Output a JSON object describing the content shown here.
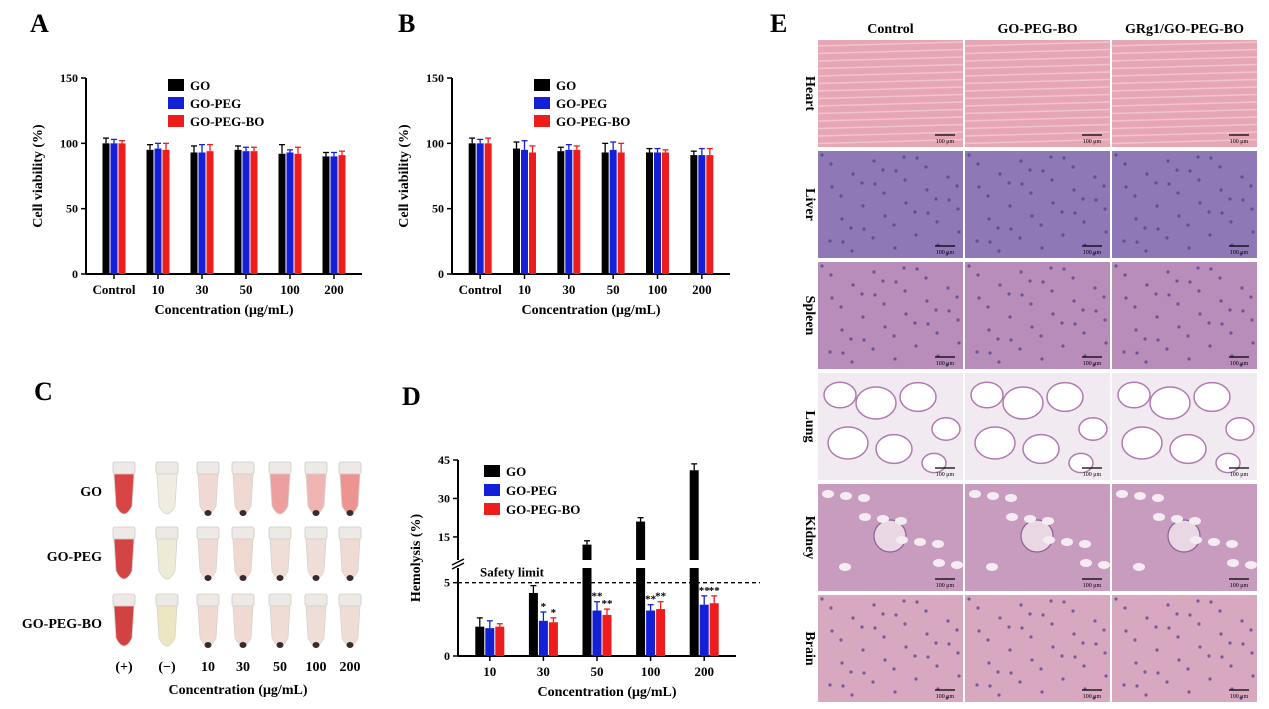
{
  "panel_labels": {
    "a": "A",
    "b": "B",
    "c": "C",
    "d": "D",
    "e": "E"
  },
  "colors": {
    "GO": "#000000",
    "GO-PEG": "#1420d8",
    "GO-PEG-BO": "#ee1c1c"
  },
  "chart_data": [
    {
      "panel": "A",
      "type": "bar",
      "categories": [
        "Control",
        "10",
        "30",
        "50",
        "100",
        "200"
      ],
      "series": [
        {
          "name": "GO",
          "values": [
            100,
            95,
            93,
            95,
            92,
            90
          ],
          "errors": [
            4,
            4,
            5,
            3,
            7,
            3
          ]
        },
        {
          "name": "GO-PEG",
          "values": [
            100,
            96,
            93,
            94,
            93,
            90
          ],
          "errors": [
            3,
            4,
            6,
            3,
            2,
            3
          ]
        },
        {
          "name": "GO-PEG-BO",
          "values": [
            100,
            95,
            94,
            94,
            92,
            91
          ],
          "errors": [
            2,
            5,
            5,
            3,
            5,
            3
          ]
        }
      ],
      "xlabel": "Concentration (μg/mL)",
      "ylabel": "Cell viability (%)",
      "ylim": [
        0,
        150
      ],
      "yticks": [
        "0",
        "50",
        "100",
        "150"
      ],
      "legend": "top-left"
    },
    {
      "panel": "B",
      "type": "bar",
      "categories": [
        "Control",
        "10",
        "30",
        "50",
        "100",
        "200"
      ],
      "series": [
        {
          "name": "GO",
          "values": [
            100,
            96,
            94,
            93,
            93,
            91
          ],
          "errors": [
            4,
            5,
            3,
            7,
            3,
            3
          ]
        },
        {
          "name": "GO-PEG",
          "values": [
            100,
            95,
            95,
            95,
            93,
            91
          ],
          "errors": [
            3,
            7,
            4,
            6,
            3,
            5
          ]
        },
        {
          "name": "GO-PEG-BO",
          "values": [
            100,
            93,
            95,
            93,
            93,
            91
          ],
          "errors": [
            4,
            5,
            3,
            7,
            2,
            5
          ]
        }
      ],
      "xlabel": "Concentration (μg/mL)",
      "ylabel": "Cell viability (%)",
      "ylim": [
        0,
        150
      ],
      "yticks": [
        "0",
        "50",
        "100",
        "150"
      ],
      "legend": "top-left"
    },
    {
      "panel": "D",
      "type": "bar",
      "categories": [
        "10",
        "30",
        "50",
        "100",
        "200"
      ],
      "series": [
        {
          "name": "GO",
          "values": [
            2.0,
            4.3,
            12.0,
            21.0,
            41.0
          ],
          "errors": [
            0.6,
            0.5,
            1.5,
            1.5,
            2.5
          ]
        },
        {
          "name": "GO-PEG",
          "values": [
            1.9,
            2.4,
            3.1,
            3.1,
            3.5
          ],
          "errors": [
            0.5,
            0.6,
            0.6,
            0.4,
            0.6
          ]
        },
        {
          "name": "GO-PEG-BO",
          "values": [
            2.0,
            2.3,
            2.8,
            3.2,
            3.6
          ],
          "errors": [
            0.2,
            0.3,
            0.4,
            0.5,
            0.5
          ]
        }
      ],
      "significance": {
        "GO-PEG": [
          "",
          "*",
          "**",
          "**",
          "**"
        ],
        "GO-PEG-BO": [
          "",
          "*",
          "**",
          "**",
          "**"
        ]
      },
      "xlabel": "Concentration (μg/mL)",
      "ylabel": "Hemolysis (%)",
      "y_broken_axis": {
        "lower": [
          0,
          6
        ],
        "upper": [
          6,
          45
        ]
      },
      "yticks": [
        "0",
        "5",
        "15",
        "30",
        "45"
      ],
      "reference_line": {
        "value": 5,
        "label": "Safety limit"
      },
      "legend": "top-left"
    }
  ],
  "panel_c": {
    "row_labels": [
      "GO",
      "GO-PEG",
      "GO-PEG-BO"
    ],
    "column_labels": [
      "(+)",
      "(−)",
      "10",
      "30",
      "50",
      "100",
      "200"
    ],
    "xlabel": "Concentration (μg/mL)",
    "tube_colors": [
      [
        "#d83a3a",
        "#f1ebe0",
        "#f0d8d2",
        "#efd6cf",
        "#ec9a98",
        "#f0b1ae",
        "#ea8f8b"
      ],
      [
        "#d13a3a",
        "#ede9d4",
        "#efd9d3",
        "#efd6ce",
        "#efddd6",
        "#efdcd5",
        "#efd9d2"
      ],
      [
        "#d03838",
        "#ebe6bf",
        "#f0d7cf",
        "#efd8d0",
        "#efdcd3",
        "#efddd6",
        "#eedbd3"
      ]
    ],
    "pellet_rows": [
      [
        false,
        false,
        true,
        true,
        false,
        true,
        true
      ],
      [
        false,
        false,
        true,
        true,
        true,
        true,
        true
      ],
      [
        false,
        false,
        true,
        true,
        true,
        true,
        true
      ]
    ]
  },
  "panel_e": {
    "columns": [
      "Control",
      "GO-PEG-BO",
      "GRg1/GO-PEG-BO"
    ],
    "rows": [
      {
        "label": "Heart",
        "tint": "#e7a6b4"
      },
      {
        "label": "Liver",
        "tint": "#8e79b6"
      },
      {
        "label": "Spleen",
        "tint": "#b88db9"
      },
      {
        "label": "Lung",
        "tint": "#f1eaf1"
      },
      {
        "label": "Kidney",
        "tint": "#c79cbe"
      },
      {
        "label": "Brain",
        "tint": "#d8a7c0"
      }
    ],
    "scale_bar": "100 μm"
  }
}
